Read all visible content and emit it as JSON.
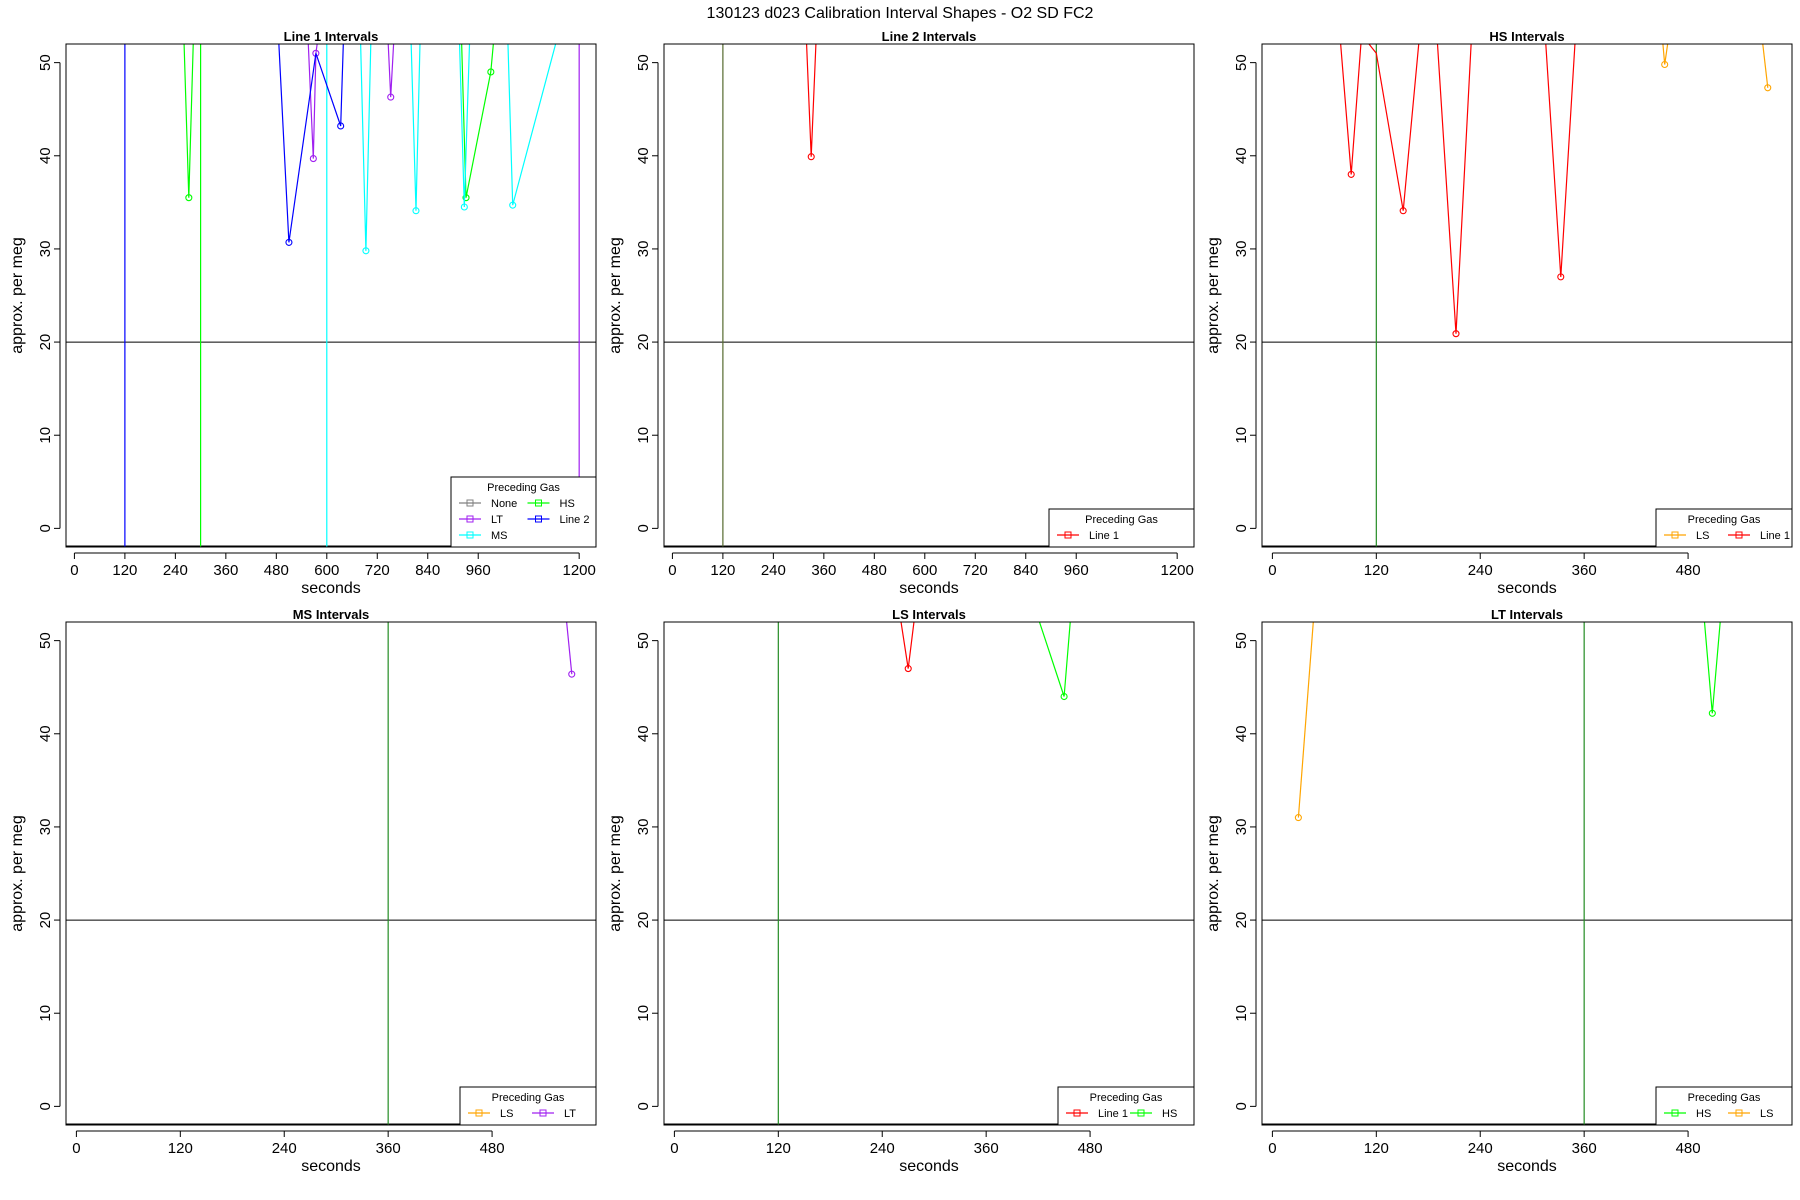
{
  "page_title": "130123   d023   Calibration Interval Shapes - O2 SD FC2",
  "chart_data": [
    {
      "type": "line",
      "title": "Line 1 Intervals",
      "xlabel": "seconds",
      "ylabel": "approx. per meg",
      "xlim": [
        -20,
        1240
      ],
      "ylim": [
        -2,
        52
      ],
      "xticks": [
        0,
        120,
        240,
        360,
        480,
        600,
        720,
        840,
        960,
        1200
      ],
      "yticks": [
        0,
        10,
        20,
        30,
        40,
        50
      ],
      "hline": 20,
      "vlines": [
        {
          "x": 120,
          "color": "#0000ff"
        },
        {
          "x": 300,
          "color": "#00ff00"
        },
        {
          "x": 600,
          "color": "#00ffff"
        },
        {
          "x": 1200,
          "color": "#a020f0"
        }
      ],
      "legend": {
        "title": "Preceding Gas",
        "position": "bottom-right",
        "columns": 2,
        "entries": [
          "None",
          "HS",
          "LT",
          "Line 2",
          "MS"
        ]
      },
      "series": [
        {
          "name": "HS",
          "color": "#00ff00",
          "lines": [
            [
              [
                260,
                53
              ],
              [
                272,
                35.5
              ],
              [
                283,
                53
              ]
            ],
            [
              [
                920,
                53
              ],
              [
                931,
                35.5
              ],
              [
                990,
                49
              ],
              [
                998,
                53
              ]
            ]
          ],
          "points": [
            [
              272,
              35.5
            ],
            [
              931,
              35.5
            ],
            [
              990,
              49
            ]
          ]
        },
        {
          "name": "LT",
          "color": "#a020f0",
          "lines": [
            [
              [
                555,
                53
              ],
              [
                568,
                39.7
              ],
              [
                574,
                51
              ],
              [
                580,
                53
              ]
            ],
            [
              [
                745,
                53
              ],
              [
                752,
                46.3
              ],
              [
                760,
                53
              ]
            ]
          ],
          "points": [
            [
              568,
              39.7
            ],
            [
              574,
              51
            ],
            [
              752,
              46.3
            ]
          ]
        },
        {
          "name": "Line 2",
          "color": "#0000ff",
          "lines": [
            [
              [
                485,
                53
              ],
              [
                510,
                30.7
              ],
              [
                574,
                51
              ],
              [
                633,
                43.2
              ],
              [
                640,
                53
              ]
            ]
          ],
          "points": [
            [
              510,
              30.7
            ],
            [
              633,
              43.2
            ]
          ]
        },
        {
          "name": "MS",
          "color": "#00ffff",
          "lines": [
            [
              [
                680,
                53
              ],
              [
                693,
                29.8
              ],
              [
                705,
                53
              ]
            ],
            [
              [
                800,
                53
              ],
              [
                812,
                34.1
              ],
              [
                822,
                53
              ]
            ],
            [
              [
                915,
                53
              ],
              [
                927,
                34.5
              ],
              [
                940,
                53
              ]
            ],
            [
              [
                1030,
                53
              ],
              [
                1042,
                34.7
              ],
              [
                1150,
                53
              ]
            ]
          ],
          "points": [
            [
              693,
              29.8
            ],
            [
              812,
              34.1
            ],
            [
              927,
              34.5
            ],
            [
              1042,
              34.7
            ]
          ]
        }
      ]
    },
    {
      "type": "line",
      "title": "Line 2 Intervals",
      "xlabel": "seconds",
      "ylabel": "approx. per meg",
      "xlim": [
        -20,
        1240
      ],
      "ylim": [
        -2,
        52
      ],
      "xticks": [
        0,
        120,
        240,
        360,
        480,
        600,
        720,
        840,
        960,
        1200
      ],
      "yticks": [
        0,
        10,
        20,
        30,
        40,
        50
      ],
      "hline": 20,
      "vlines": [
        {
          "x": 120,
          "color": "#556b2f"
        }
      ],
      "legend": {
        "title": "Preceding Gas",
        "position": "bottom-right",
        "columns": 1,
        "entries": [
          "Line 1"
        ]
      },
      "series": [
        {
          "name": "Line 1",
          "color": "#ff0000",
          "lines": [
            [
              [
                318,
                53
              ],
              [
                330,
                39.9
              ],
              [
                342,
                53
              ]
            ]
          ],
          "points": [
            [
              330,
              39.9
            ]
          ]
        }
      ]
    },
    {
      "type": "line",
      "title": "HS Intervals",
      "xlabel": "seconds",
      "ylabel": "approx. per meg",
      "xlim": [
        -12,
        600
      ],
      "ylim": [
        -2,
        52
      ],
      "xticks": [
        0,
        120,
        240,
        360,
        480
      ],
      "yticks": [
        0,
        10,
        20,
        30,
        40,
        50
      ],
      "hline": 20,
      "vlines": [
        {
          "x": 120,
          "color": "#228b22"
        }
      ],
      "legend": {
        "title": "Preceding Gas",
        "position": "bottom-right",
        "columns": 2,
        "entries": [
          "LS",
          "Line 1"
        ]
      },
      "series": [
        {
          "name": "Line 1",
          "color": "#ff0000",
          "lines": [
            [
              [
                78,
                53
              ],
              [
                91,
                38
              ],
              [
                103,
                53
              ],
              [
                120,
                51
              ],
              [
                151,
                34.1
              ],
              [
                170,
                53
              ]
            ],
            [
              [
                190,
                53
              ],
              [
                212,
                20.9
              ],
              [
                230,
                53
              ]
            ],
            [
              [
                315,
                53
              ],
              [
                333,
                27
              ],
              [
                350,
                53
              ]
            ]
          ],
          "points": [
            [
              91,
              38
            ],
            [
              151,
              34.1
            ],
            [
              212,
              20.9
            ],
            [
              333,
              27
            ]
          ]
        },
        {
          "name": "LS",
          "color": "#ffa500",
          "lines": [
            [
              [
                450,
                53
              ],
              [
                453,
                49.8
              ],
              [
                458,
                53
              ]
            ],
            [
              [
                565,
                53
              ],
              [
                572,
                47.3
              ]
            ]
          ],
          "points": [
            [
              453,
              49.8
            ],
            [
              572,
              47.3
            ]
          ]
        }
      ]
    },
    {
      "type": "line",
      "title": "MS Intervals",
      "xlabel": "seconds",
      "ylabel": "approx. per meg",
      "xlim": [
        -12,
        600
      ],
      "ylim": [
        -2,
        52
      ],
      "xticks": [
        0,
        120,
        240,
        360,
        480
      ],
      "yticks": [
        0,
        10,
        20,
        30,
        40,
        50
      ],
      "hline": 20,
      "vlines": [
        {
          "x": 360,
          "color": "#228b22"
        }
      ],
      "legend": {
        "title": "Preceding Gas",
        "position": "bottom-right",
        "columns": 2,
        "entries": [
          "LS",
          "LT"
        ]
      },
      "series": [
        {
          "name": "LT",
          "color": "#a020f0",
          "lines": [
            [
              [
                565,
                53
              ],
              [
                572,
                46.4
              ]
            ]
          ],
          "points": [
            [
              572,
              46.4
            ]
          ]
        }
      ]
    },
    {
      "type": "line",
      "title": "LS Intervals",
      "xlabel": "seconds",
      "ylabel": "approx. per meg",
      "xlim": [
        -12,
        600
      ],
      "ylim": [
        -2,
        52
      ],
      "xticks": [
        0,
        120,
        240,
        360,
        480
      ],
      "yticks": [
        0,
        10,
        20,
        30,
        40,
        50
      ],
      "hline": 20,
      "vlines": [
        {
          "x": 120,
          "color": "#228b22"
        }
      ],
      "legend": {
        "title": "Preceding Gas",
        "position": "bottom-right",
        "columns": 2,
        "entries": [
          "Line 1",
          "HS"
        ]
      },
      "series": [
        {
          "name": "Line 1",
          "color": "#ff0000",
          "lines": [
            [
              [
                260,
                53
              ],
              [
                270,
                47
              ],
              [
                278,
                53
              ]
            ]
          ],
          "points": [
            [
              270,
              47
            ]
          ]
        },
        {
          "name": "HS",
          "color": "#00ff00",
          "lines": [
            [
              [
                418,
                53
              ],
              [
                450,
                44
              ],
              [
                458,
                53
              ]
            ]
          ],
          "points": [
            [
              450,
              44
            ]
          ]
        }
      ]
    },
    {
      "type": "line",
      "title": "LT Intervals",
      "xlabel": "seconds",
      "ylabel": "approx. per meg",
      "xlim": [
        -12,
        600
      ],
      "ylim": [
        -2,
        52
      ],
      "xticks": [
        0,
        120,
        240,
        360,
        480
      ],
      "yticks": [
        0,
        10,
        20,
        30,
        40,
        50
      ],
      "hline": 20,
      "vlines": [
        {
          "x": 360,
          "color": "#228b22"
        }
      ],
      "legend": {
        "title": "Preceding Gas",
        "position": "bottom-right",
        "columns": 2,
        "entries": [
          "HS",
          "LS"
        ]
      },
      "series": [
        {
          "name": "LS",
          "color": "#ffa500",
          "lines": [
            [
              [
                30,
                31
              ],
              [
                48,
                53
              ]
            ]
          ],
          "points": [
            [
              30,
              31
            ]
          ]
        },
        {
          "name": "HS",
          "color": "#00ff00",
          "lines": [
            [
              [
                498,
                53
              ],
              [
                508,
                42.2
              ],
              [
                518,
                53
              ]
            ]
          ],
          "points": [
            [
              508,
              42.2
            ]
          ]
        }
      ]
    }
  ]
}
